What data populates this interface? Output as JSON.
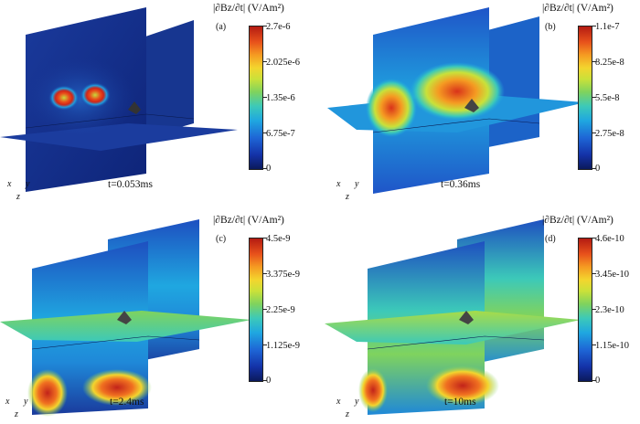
{
  "colorbar_title": "|∂Bz/∂t| (V/Am²)",
  "axis_labels": {
    "x": "x",
    "y": "y",
    "z": "z"
  },
  "panels": [
    {
      "label": "(a)",
      "time": "t=0.053ms",
      "ticks": [
        "2.7e-6",
        "2.025e-6",
        "1.35e-6",
        "6.75e-7",
        "0"
      ]
    },
    {
      "label": "(b)",
      "time": "t=0.36ms",
      "ticks": [
        "1.1e-7",
        "8.25e-8",
        "5.5e-8",
        "2.75e-8",
        "0"
      ]
    },
    {
      "label": "(c)",
      "time": "t=2.4ms",
      "ticks": [
        "4.5e-9",
        "3.375e-9",
        "2.25e-9",
        "1.125e-9",
        "0"
      ]
    },
    {
      "label": "(d)",
      "time": "t=10ms",
      "ticks": [
        "4.6e-10",
        "3.45e-10",
        "2.3e-10",
        "1.15e-10",
        "0"
      ]
    }
  ],
  "colors": {
    "low": "#0b1a5c",
    "mid": "#7fd35e",
    "high": "#b41b12"
  }
}
